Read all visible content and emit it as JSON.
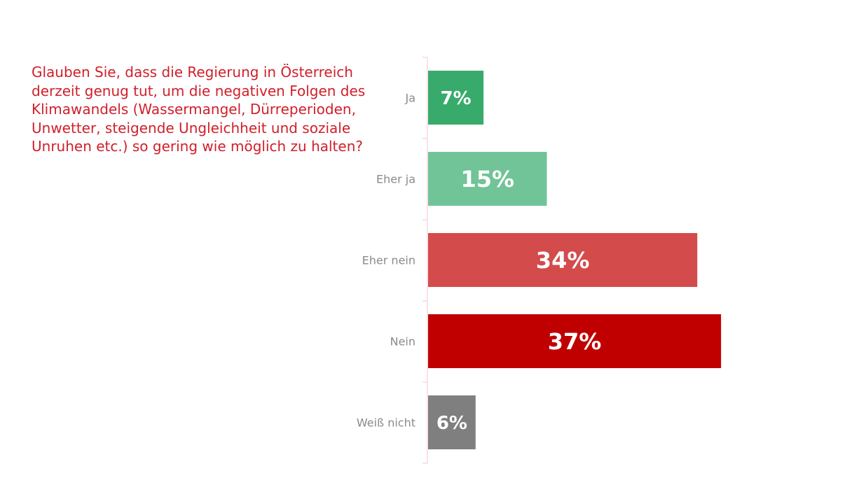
{
  "question": "Glauben Sie, dass die Regierung in Österreich\nderzeit genug tut, um die negativen Folgen des\nKlimawandels (Wassermangel, Dürreperioden,\nUnwetter, steigende Ungleichheit und soziale\nUnruhen etc.) so gering wie möglich zu halten?",
  "colors": {
    "question_text": "#d01f2a",
    "category_label": "#8a8a8a",
    "axis_line": "#f4c6cc",
    "value_label": "#ffffff"
  },
  "chart_data": {
    "type": "bar",
    "orientation": "horizontal",
    "categories": [
      "Ja",
      "Eher ja",
      "Eher nein",
      "Nein",
      "Weiß nicht"
    ],
    "values": [
      7,
      15,
      34,
      37,
      6
    ],
    "value_labels": [
      "7%",
      "15%",
      "34%",
      "37%",
      "6%"
    ],
    "bar_colors": [
      "#38ab6c",
      "#70c497",
      "#d44b4c",
      "#c00000",
      "#7f7f7f"
    ],
    "unit": "%",
    "xlim": [
      0,
      40
    ],
    "grid": false,
    "legend": "none"
  }
}
